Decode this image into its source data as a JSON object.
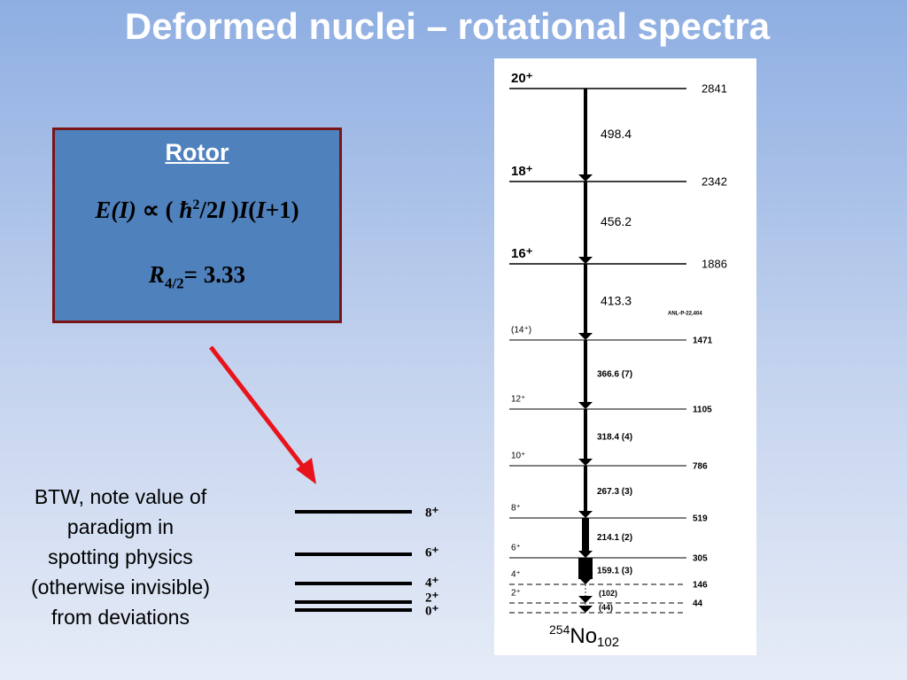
{
  "header": {
    "title": "Deformed nuclei – rotational spectra"
  },
  "rotor_box": {
    "heading": "Rotor",
    "formula": [
      "E(I)",
      " ∝ ( ",
      "ħ",
      "2",
      "/2",
      "I",
      " )",
      "I",
      "(",
      "I",
      "+1)"
    ],
    "ratio": {
      "symbol": "R",
      "subscript": "4/2",
      "value": "= 3.33"
    }
  },
  "note": {
    "lines": [
      "BTW, note value of",
      "paradigm in",
      "spotting physics",
      "(otherwise invisible)",
      "from deviations"
    ]
  },
  "rotor_levels": [
    "8⁺",
    "6⁺",
    "4⁺",
    "2⁺",
    "0⁺"
  ],
  "level_scheme": {
    "levels": [
      {
        "spin": "20⁺",
        "energy": "2841"
      },
      {
        "spin": "18⁺",
        "energy": "2342"
      },
      {
        "spin": "16⁺",
        "energy": "1886"
      },
      {
        "spin": "(14⁺)",
        "energy": "1471"
      },
      {
        "spin": "12⁺",
        "energy": "1105"
      },
      {
        "spin": "10⁺",
        "energy": "786"
      },
      {
        "spin": "8⁺",
        "energy": "519"
      },
      {
        "spin": "6⁺",
        "energy": "305"
      },
      {
        "spin": "4⁺",
        "energy": "146"
      },
      {
        "spin": "2⁺",
        "energy": "44"
      }
    ],
    "transitions": [
      "498.4",
      "456.2",
      "413.3",
      "366.6 (7)",
      "318.4 (4)",
      "267.3 (3)",
      "214.1 (2)",
      "159.1 (3)",
      "(102)",
      "(44)"
    ],
    "reference": "ANL-P-22,404",
    "nucleus": {
      "mass": "254",
      "symbol": "No",
      "charge": "102"
    }
  }
}
